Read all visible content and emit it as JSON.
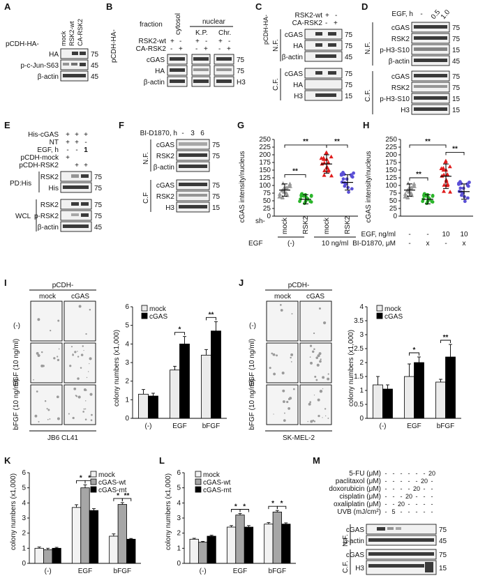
{
  "panels": {
    "A": {
      "label": "A",
      "vector": "pCDH-HA-",
      "cols": [
        "mock",
        "RSK2-wt",
        "CA-RSK2"
      ],
      "rows": [
        "HA",
        "p-c-Jun-S63",
        "β-actin"
      ],
      "mw": [
        "75",
        "45",
        "45"
      ]
    },
    "B": {
      "label": "B",
      "vector": "pCDH-HA-",
      "fraction": "fraction",
      "cytosol": "cytosol",
      "nuclear": "nuclear",
      "kp": "K.P.",
      "chr": "Chr.",
      "cond1": "RSK2-wt",
      "cond2": "CA-RSK2",
      "rows": [
        "cGAS",
        "HA",
        "β-actin"
      ],
      "mw": [
        "75",
        "75",
        "H3"
      ]
    },
    "C": {
      "label": "C",
      "vector": "pCDH-HA-",
      "cond1": "RSK2-wt",
      "cond2": "CA-RSK2",
      "nf": "N.F.",
      "cf": "C.F.",
      "nf_rows": [
        "cGAS",
        "HA",
        "β-actin"
      ],
      "nf_mw": [
        "75",
        "75",
        "45"
      ],
      "cf_rows": [
        "cGAS",
        "HA",
        "H3"
      ],
      "cf_mw": [
        "75",
        "75",
        "15"
      ]
    },
    "D": {
      "label": "D",
      "cond": "EGF, h",
      "times": [
        "-",
        "0.5",
        "1.0"
      ],
      "nf": "N.F.",
      "cf": "C.F.",
      "nf_rows": [
        "cGAS",
        "RSK2",
        "p-H3-S10",
        "β-actin"
      ],
      "nf_mw": [
        "75",
        "75",
        "15",
        "45"
      ],
      "cf_rows": [
        "cGAS",
        "RSK2",
        "p-H3-S10",
        "H3"
      ],
      "cf_mw": [
        "75",
        "75",
        "15",
        "15"
      ]
    },
    "E": {
      "label": "E",
      "conds": [
        "His-cGAS",
        "NT",
        "EGF, h",
        "pCDH-mock",
        "pCDH-RSK2"
      ],
      "signs": [
        [
          "+",
          "+",
          "+"
        ],
        [
          "+",
          "+",
          "-"
        ],
        [
          "-",
          "-",
          "1"
        ],
        [
          "+",
          "",
          ""
        ],
        [
          "",
          "+",
          "+"
        ]
      ],
      "pd": "PD:His",
      "wcl": "WCL",
      "pd_rows": [
        "RSK2",
        "His"
      ],
      "pd_mw": [
        "75",
        "75"
      ],
      "wcl_rows": [
        "RSK2",
        "p-RSK2",
        "β-actin"
      ],
      "wcl_mw": [
        "75",
        "75",
        "45"
      ]
    },
    "F": {
      "label": "F",
      "cond": "BI-D1870, h",
      "times": [
        "-",
        "3",
        "6"
      ],
      "nf": "N.F.",
      "cf": "C.F",
      "nf_rows": [
        "cGAS",
        "RSK2",
        "β-actin"
      ],
      "nf_mw": [
        "75",
        "75",
        ""
      ],
      "cf_rows": [
        "cGAS",
        "RSK2",
        "H3"
      ],
      "cf_mw": [
        "75",
        "75",
        "15"
      ]
    },
    "G": {
      "label": "G",
      "ylabel": "cGAS intensity/nucleus",
      "yticks": [
        "0",
        "25",
        "50",
        "75",
        "100",
        "125",
        "150",
        "175",
        "200",
        "225",
        "250"
      ],
      "sh": "sh-",
      "groups": [
        "mock",
        "RSK2",
        "mock",
        "RSK2"
      ],
      "egf": "EGF",
      "egf_neg": "(-)",
      "egf_pos": "10 ng/ml",
      "stars": [
        "**",
        "**",
        "**"
      ]
    },
    "H": {
      "label": "H",
      "ylabel": "cGAS intensity/nucleus",
      "yticks": [
        "0",
        "25",
        "50",
        "75",
        "100",
        "125",
        "150",
        "175",
        "200",
        "225",
        "250"
      ],
      "r1": "EGF, ng/ml",
      "r1v": [
        "-",
        "-",
        "10",
        "10"
      ],
      "r2": "BI-D1870, μM",
      "r2v": [
        "-",
        "x",
        "-",
        "x"
      ],
      "stars": [
        "**",
        "**",
        "**"
      ]
    },
    "I": {
      "label": "I",
      "vector": "pCDH-",
      "cols": [
        "mock",
        "cGAS"
      ],
      "rows": [
        "(-)",
        "EGF (10 ng/ml)",
        "bFGF (10 ng/ml)"
      ],
      "cell": "JB6 CL41",
      "legend": [
        "mock",
        "cGAS"
      ],
      "ylabel": "colony numbers (x1,000)",
      "yticks": [
        "0",
        "1",
        "2",
        "3",
        "4",
        "5",
        "6"
      ],
      "cats": [
        "(-)",
        "EGF",
        "bFGF"
      ],
      "stars": [
        "*",
        "**"
      ]
    },
    "J": {
      "label": "J",
      "vector": "pCDH-",
      "cols": [
        "mock",
        "cGAS"
      ],
      "rows": [
        "(-)",
        "EGF (10 ng/ml)",
        "bFGF (10 ng/ml)"
      ],
      "cell": "SK-MEL-2",
      "legend": [
        "mock",
        "cGAS"
      ],
      "ylabel": "colony numbers (x1,000)",
      "yticks": [
        "0",
        "0.5",
        "1",
        "1.5",
        "2",
        "2.5",
        "3",
        "3.5",
        "4"
      ],
      "cats": [
        "(-)",
        "EGF",
        "bFGF"
      ],
      "stars": [
        "*",
        "**"
      ]
    },
    "K": {
      "label": "K",
      "legend": [
        "mock",
        "cGAS-wt",
        "cGAS-mt"
      ],
      "ylabel": "colony numbers (x1,000)",
      "yticks": [
        "0",
        "1",
        "2",
        "3",
        "4",
        "5",
        "6"
      ],
      "cats": [
        "(-)",
        "EGF",
        "bFGF"
      ],
      "stars": [
        "*",
        "*",
        "*",
        "**"
      ]
    },
    "L": {
      "label": "L",
      "legend": [
        "mock",
        "cGAS-wt",
        "cGAS-mt"
      ],
      "ylabel": "colony numbers (x1,000)",
      "yticks": [
        "0",
        "1",
        "2",
        "3",
        "4",
        "5",
        "6"
      ],
      "cats": [
        "(-)",
        "EGF",
        "bFGF"
      ],
      "stars": [
        "*",
        "*",
        "*",
        "*"
      ]
    },
    "M": {
      "label": "M",
      "conds": [
        "5-FU (μM)",
        "paclitaxol (μM)",
        "doxorubicin (μM)",
        "cisplatin (μM)",
        "oxaliplatin (μM)",
        "UVB (mJ/cm²)"
      ],
      "signs": [
        [
          "-",
          "-",
          "-",
          "-",
          "-",
          "-",
          "20"
        ],
        [
          "-",
          "-",
          "-",
          "-",
          "-",
          "20",
          "-"
        ],
        [
          "-",
          "-",
          "-",
          "-",
          "20",
          "-",
          "-"
        ],
        [
          "-",
          "-",
          "-",
          "20",
          "-",
          "-",
          "-"
        ],
        [
          "-",
          "-",
          "20",
          "-",
          "-",
          "-",
          "-"
        ],
        [
          "-",
          "5",
          "-",
          "-",
          "-",
          "-",
          "-"
        ]
      ],
      "nf": "N.F.",
      "cf": "C.F.",
      "nf_rows": [
        "cGAS",
        "β-actin"
      ],
      "nf_mw": [
        "75",
        "45"
      ],
      "cf_rows": [
        "cGAS",
        "H3"
      ],
      "cf_mw": [
        "75",
        "15"
      ]
    }
  },
  "chart_data": [
    {
      "type": "scatter",
      "panel": "G",
      "categories": [
        "mock (-)",
        "RSK2 (-)",
        "mock 10 ng/ml",
        "RSK2 10 ng/ml"
      ],
      "means": [
        85,
        55,
        170,
        110
      ],
      "sd": [
        20,
        15,
        30,
        25
      ],
      "ylim": [
        0,
        250
      ],
      "colors": [
        "#9a9a9a",
        "#2bb52b",
        "#e01c1c",
        "#5a4fd6"
      ],
      "markers": [
        "triangle",
        "circle",
        "triangle",
        "circle"
      ]
    },
    {
      "type": "scatter",
      "panel": "H",
      "categories": [
        "-/-",
        "-/x",
        "10/-",
        "10/x"
      ],
      "means": [
        85,
        55,
        130,
        80
      ],
      "sd": [
        20,
        15,
        40,
        25
      ],
      "ylim": [
        0,
        250
      ],
      "colors": [
        "#9a9a9a",
        "#2bb52b",
        "#e01c1c",
        "#5a4fd6"
      ],
      "markers": [
        "triangle",
        "circle",
        "triangle",
        "circle"
      ]
    },
    {
      "type": "bar",
      "panel": "I",
      "categories": [
        "(-)",
        "EGF",
        "bFGF"
      ],
      "series": [
        {
          "name": "mock",
          "values": [
            1.3,
            2.6,
            3.4
          ],
          "err": [
            0.25,
            0.2,
            0.3
          ]
        },
        {
          "name": "cGAS",
          "values": [
            1.2,
            4.0,
            4.7
          ],
          "err": [
            0.15,
            0.4,
            0.5
          ]
        }
      ],
      "ylim": [
        0,
        6
      ]
    },
    {
      "type": "bar",
      "panel": "J",
      "categories": [
        "(-)",
        "EGF",
        "bFGF"
      ],
      "series": [
        {
          "name": "mock",
          "values": [
            1.2,
            1.5,
            1.3
          ],
          "err": [
            0.3,
            0.45,
            0.1
          ]
        },
        {
          "name": "cGAS",
          "values": [
            1.05,
            2.0,
            2.2
          ],
          "err": [
            0.15,
            0.2,
            0.45
          ]
        }
      ],
      "ylim": [
        0,
        4
      ]
    },
    {
      "type": "bar",
      "panel": "K",
      "categories": [
        "(-)",
        "EGF",
        "bFGF"
      ],
      "series": [
        {
          "name": "mock",
          "values": [
            1.0,
            3.7,
            1.8
          ],
          "err": [
            0.08,
            0.18,
            0.15
          ]
        },
        {
          "name": "cGAS-wt",
          "values": [
            0.9,
            5.0,
            3.9
          ],
          "err": [
            0.1,
            0.2,
            0.12
          ]
        },
        {
          "name": "cGAS-mt",
          "values": [
            1.0,
            3.5,
            1.6
          ],
          "err": [
            0.06,
            0.12,
            0.05
          ]
        }
      ],
      "ylim": [
        0,
        6
      ]
    },
    {
      "type": "bar",
      "panel": "L",
      "categories": [
        "(-)",
        "EGF",
        "bFGF"
      ],
      "series": [
        {
          "name": "mock",
          "values": [
            1.6,
            2.4,
            2.6
          ],
          "err": [
            0.06,
            0.1,
            0.1
          ]
        },
        {
          "name": "cGAS-wt",
          "values": [
            1.4,
            3.2,
            3.4
          ],
          "err": [
            0.05,
            0.1,
            0.1
          ]
        },
        {
          "name": "cGAS-mt",
          "values": [
            1.8,
            2.4,
            2.6
          ],
          "err": [
            0.06,
            0.1,
            0.08
          ]
        }
      ],
      "ylim": [
        0,
        6
      ]
    }
  ]
}
